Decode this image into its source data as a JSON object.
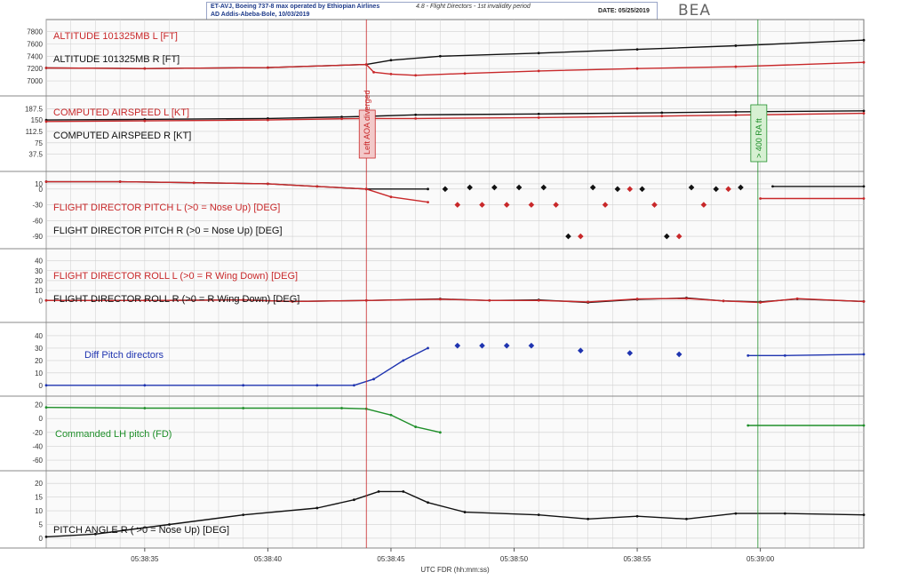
{
  "header": {
    "aircraft": "ET-AVJ, Boeing 737-8 max operated by Ethiopian Airlines",
    "airport": "AD Addis-Abeba-Bole, 10/03/2019",
    "section": "4.8 - Flight Directors - 1st invalidity period",
    "date": "DATE: 05/25/2019"
  },
  "logo": "BEA",
  "colors": {
    "red": "#c8282a",
    "black": "#111111",
    "blue": "#1f34b0",
    "green": "#1f8f2a",
    "grid": "#cfcfcf"
  },
  "chart_data": {
    "type": "line",
    "xlabel": "UTC FDR (hh:mm:ss)",
    "xlim": [
      0,
      33.2
    ],
    "x_ticks": [
      {
        "t": 4,
        "label": "05:38:35"
      },
      {
        "t": 9,
        "label": "05:38:40"
      },
      {
        "t": 14,
        "label": "05:38:45"
      },
      {
        "t": 19,
        "label": "05:38:50"
      },
      {
        "t": 24,
        "label": "05:38:55"
      },
      {
        "t": 29,
        "label": "05:39:00"
      }
    ],
    "events": [
      {
        "t": 13.0,
        "label": "Left AOA diverged",
        "color": "#c8282a"
      },
      {
        "t": 28.9,
        "label": "> 400 RA ft",
        "color": "#1f8f2a"
      }
    ],
    "panels": [
      {
        "ylim": [
          6900,
          7850
        ],
        "yticks": [
          7000,
          7200,
          7400,
          7600,
          7800
        ],
        "labels": [
          {
            "text": "ALTITUDE 101325MB L [FT]",
            "color": "#c8282a"
          },
          {
            "text": "ALTITUDE 101325MB R [FT]",
            "color": "#111111"
          }
        ],
        "series": [
          {
            "color": "#111111",
            "x": [
              0,
              4,
              9,
              13,
              14,
              16,
              20,
              24,
              28,
              33.2
            ],
            "y": [
              7210,
              7200,
              7215,
              7265,
              7335,
              7400,
              7450,
              7510,
              7570,
              7660
            ]
          },
          {
            "color": "#c8282a",
            "x": [
              0,
              4,
              9,
              13,
              13.3,
              14,
              15,
              17,
              20,
              24,
              28,
              33.2
            ],
            "y": [
              7210,
              7200,
              7215,
              7265,
              7140,
              7110,
              7090,
              7120,
              7160,
              7200,
              7230,
              7300
            ]
          }
        ]
      },
      {
        "ylim": [
          10,
          200
        ],
        "yticks": [
          37.5,
          75,
          112.5,
          150,
          187.5
        ],
        "labels": [
          {
            "text": "COMPUTED AIRSPEED L [KT]",
            "color": "#c8282a"
          },
          {
            "text": "COMPUTED AIRSPEED R [KT]",
            "color": "#111111"
          }
        ],
        "series": [
          {
            "color": "#111111",
            "x": [
              0,
              4,
              9,
              12,
              13,
              15,
              20,
              25,
              28,
              33.2
            ],
            "y": [
              150,
              152,
              155,
              160,
              162,
              167,
              170,
              174,
              177,
              180
            ]
          },
          {
            "color": "#c8282a",
            "x": [
              0,
              4,
              9,
              12,
              13,
              15,
              20,
              25,
              28,
              33.2
            ],
            "y": [
              145,
              147,
              150,
              154,
              155,
              155,
              158,
              163,
              166,
              172
            ]
          }
        ]
      },
      {
        "ylim": [
          -100,
          20
        ],
        "yticks": [
          -90,
          -60,
          -30,
          0,
          10
        ],
        "labels": [
          {
            "text": "FLIGHT DIRECTOR PITCH L (>0 = Nose Up) [DEG]",
            "color": "#c8282a"
          },
          {
            "text": "FLIGHT DIRECTOR PITCH R (>0 = Nose Up) [DEG]",
            "color": "#111111"
          }
        ],
        "series": [
          {
            "color": "#111111",
            "x": [
              0,
              3,
              6,
              9,
              11,
              13,
              15.5
            ],
            "y": [
              14,
              14,
              12,
              10,
              5,
              0,
              0
            ]
          },
          {
            "color": "#c8282a",
            "x": [
              0,
              3,
              6,
              9,
              11,
              13,
              14,
              15.5
            ],
            "y": [
              14,
              14,
              12,
              10,
              5,
              0,
              -15,
              -25
            ]
          },
          {
            "color": "#111111",
            "x": [
              29.5,
              33.2
            ],
            "y": [
              5,
              5
            ]
          },
          {
            "color": "#c8282a",
            "x": [
              29.0,
              33.2
            ],
            "y": [
              -18,
              -18
            ]
          }
        ],
        "points": [
          {
            "color": "#111111",
            "x": [
              16.2,
              17.2,
              18.2,
              19.2,
              20.2,
              21.2,
              22.2,
              23.2,
              24.2,
              25.2,
              26.2,
              27.2,
              28.2
            ],
            "y": [
              0,
              3,
              3,
              3,
              3,
              -90,
              3,
              0,
              0,
              -90,
              3,
              0,
              3
            ]
          },
          {
            "color": "#c8282a",
            "x": [
              16.7,
              17.7,
              18.7,
              19.7,
              20.7,
              21.7,
              22.7,
              23.7,
              24.7,
              25.7,
              26.7,
              27.7
            ],
            "y": [
              -30,
              -30,
              -30,
              -30,
              -30,
              -90,
              -30,
              0,
              -30,
              -90,
              -30,
              0
            ]
          }
        ]
      },
      {
        "ylim": [
          -15,
          45
        ],
        "yticks": [
          0,
          10,
          20,
          30,
          40
        ],
        "labels": [
          {
            "text": "FLIGHT DIRECTOR ROLL L (>0 = R Wing Down) [DEG]",
            "color": "#c8282a"
          },
          {
            "text": "FLIGHT DIRECTOR ROLL R (>0 = R Wing Down) [DEG]",
            "color": "#111111"
          }
        ],
        "series": [
          {
            "color": "#111111",
            "x": [
              0,
              4,
              8,
              10,
              13,
              16,
              18,
              20,
              22,
              24,
              26,
              27.5,
              29,
              30.5,
              33.2
            ],
            "y": [
              0,
              0,
              0.5,
              -1,
              0,
              1.5,
              0,
              0.5,
              -2,
              1,
              2.5,
              -0.5,
              -1.5,
              1.5,
              -1
            ]
          },
          {
            "color": "#c8282a",
            "x": [
              0,
              4,
              8,
              10,
              13,
              16,
              18,
              20,
              22,
              24,
              26,
              27.5,
              29,
              30.5,
              33.2
            ],
            "y": [
              0,
              0,
              0.5,
              -1,
              0,
              1.2,
              0,
              0,
              -1.5,
              1.5,
              2,
              -0.5,
              -2,
              1.8,
              -1
            ]
          }
        ]
      },
      {
        "ylim": [
          -3,
          45
        ],
        "yticks": [
          0,
          10,
          20,
          30,
          40
        ],
        "labels": [
          {
            "text": "Diff Pitch directors",
            "color": "#1f34b0"
          }
        ],
        "series": [
          {
            "color": "#1f34b0",
            "x": [
              0,
              4,
              8,
              11,
              12.5,
              13.3,
              14.5,
              15.5
            ],
            "y": [
              0,
              0,
              0,
              0,
              0,
              5,
              20,
              30
            ]
          },
          {
            "color": "#1f34b0",
            "x": [
              28.5,
              30,
              33.2
            ],
            "y": [
              24,
              24,
              25
            ]
          }
        ],
        "points": [
          {
            "color": "#1f34b0",
            "x": [
              16.7,
              17.7,
              18.7,
              19.7,
              21.7,
              23.7,
              25.7
            ],
            "y": [
              32,
              32,
              32,
              32,
              28,
              26,
              25
            ]
          }
        ]
      },
      {
        "ylim": [
          -65,
          22
        ],
        "yticks": [
          -60,
          -40,
          -20,
          0,
          20
        ],
        "labels": [
          {
            "text": "Commanded LH pitch (FD)",
            "color": "#1f8f2a"
          }
        ],
        "series": [
          {
            "color": "#1f8f2a",
            "x": [
              0,
              4,
              8,
              12,
              13,
              14,
              15,
              16
            ],
            "y": [
              16,
              15,
              15,
              15,
              14,
              5,
              -12,
              -20
            ]
          },
          {
            "color": "#1f8f2a",
            "x": [
              28.5,
              33.2
            ],
            "y": [
              -10,
              -10
            ]
          }
        ]
      },
      {
        "ylim": [
          -1,
          22
        ],
        "yticks": [
          0,
          5,
          10,
          15,
          20
        ],
        "labels": [
          {
            "text": "PITCH ANGLE R ( >0 = Nose Up) [DEG]",
            "color": "#111111"
          }
        ],
        "series": [
          {
            "color": "#111111",
            "x": [
              0,
              2,
              5,
              8,
              11,
              12.5,
              13.5,
              14.5,
              15.5,
              17,
              20,
              22,
              24,
              26,
              28,
              30,
              33.2
            ],
            "y": [
              0.5,
              1.5,
              5,
              8.5,
              11,
              14,
              17,
              17,
              13,
              9.5,
              8.5,
              7,
              8,
              7,
              9,
              9,
              8.5
            ]
          }
        ]
      }
    ]
  }
}
